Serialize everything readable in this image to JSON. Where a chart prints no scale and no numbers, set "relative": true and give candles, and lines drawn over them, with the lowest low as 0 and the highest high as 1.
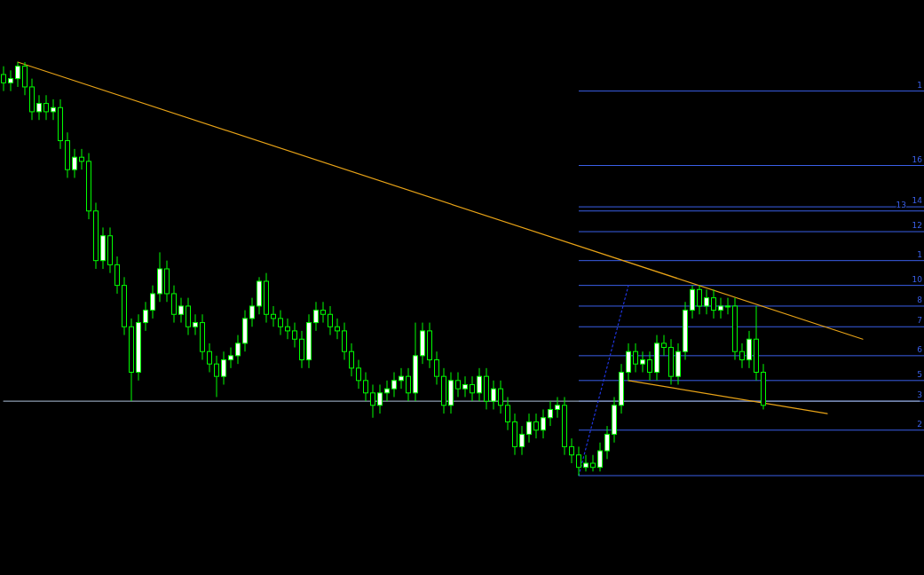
{
  "chart_data": {
    "type": "candlestick",
    "relative": true,
    "categories": [
      null,
      null,
      null,
      null,
      null,
      null,
      null,
      null,
      null,
      null,
      null,
      null,
      null,
      null,
      null,
      null,
      null,
      null,
      null,
      null,
      null,
      null,
      null,
      null,
      null,
      null,
      null,
      null,
      null,
      null,
      null,
      null,
      null,
      null,
      null,
      null,
      null,
      null,
      null,
      null,
      null,
      null,
      null,
      null,
      null,
      null,
      null,
      null,
      null,
      null,
      null,
      null,
      null,
      null,
      null,
      null,
      null,
      null,
      null,
      null,
      null,
      null,
      null,
      null,
      null,
      null,
      null,
      null,
      null,
      null,
      null,
      null,
      null,
      null,
      null,
      null,
      null,
      null,
      null,
      null,
      null,
      null,
      null,
      null,
      null,
      null,
      null,
      null,
      null,
      null,
      null,
      null,
      null,
      null,
      null,
      null,
      null,
      null,
      null,
      null,
      null,
      null,
      null,
      null,
      null,
      null,
      null,
      null,
      null,
      null,
      null,
      null,
      null,
      null,
      null,
      null,
      null,
      null,
      null,
      null,
      null,
      null,
      null,
      null,
      null,
      null,
      null,
      null,
      null,
      null
    ],
    "series": [
      {
        "type": "candlestick",
        "color": "#00ff00",
        "ohlc": [
          [
            0.97,
            0.99,
            0.93,
            0.95
          ],
          [
            0.95,
            0.98,
            0.93,
            0.96
          ],
          [
            0.96,
            1.0,
            0.94,
            0.99
          ],
          [
            0.99,
            1.0,
            0.92,
            0.94
          ],
          [
            0.94,
            0.96,
            0.86,
            0.88
          ],
          [
            0.88,
            0.92,
            0.86,
            0.9
          ],
          [
            0.9,
            0.92,
            0.86,
            0.88
          ],
          [
            0.88,
            0.91,
            0.86,
            0.89
          ],
          [
            0.89,
            0.91,
            0.79,
            0.81
          ],
          [
            0.81,
            0.83,
            0.72,
            0.74
          ],
          [
            0.74,
            0.79,
            0.72,
            0.77
          ],
          [
            0.77,
            0.79,
            0.74,
            0.76
          ],
          [
            0.76,
            0.78,
            0.62,
            0.64
          ],
          [
            0.64,
            0.66,
            0.5,
            0.52
          ],
          [
            0.52,
            0.6,
            0.5,
            0.58
          ],
          [
            0.58,
            0.6,
            0.49,
            0.51
          ],
          [
            0.51,
            0.53,
            0.44,
            0.46
          ],
          [
            0.46,
            0.48,
            0.34,
            0.36
          ],
          [
            0.36,
            0.38,
            0.18,
            0.25
          ],
          [
            0.25,
            0.39,
            0.23,
            0.37
          ],
          [
            0.37,
            0.42,
            0.35,
            0.4
          ],
          [
            0.4,
            0.46,
            0.38,
            0.44
          ],
          [
            0.44,
            0.54,
            0.42,
            0.5
          ],
          [
            0.5,
            0.52,
            0.42,
            0.44
          ],
          [
            0.44,
            0.46,
            0.37,
            0.39
          ],
          [
            0.39,
            0.43,
            0.37,
            0.41
          ],
          [
            0.41,
            0.43,
            0.34,
            0.36
          ],
          [
            0.36,
            0.39,
            0.34,
            0.37
          ],
          [
            0.37,
            0.39,
            0.28,
            0.3
          ],
          [
            0.3,
            0.32,
            0.25,
            0.27
          ],
          [
            0.27,
            0.29,
            0.19,
            0.24
          ],
          [
            0.24,
            0.3,
            0.22,
            0.28
          ],
          [
            0.28,
            0.31,
            0.26,
            0.29
          ],
          [
            0.29,
            0.34,
            0.27,
            0.32
          ],
          [
            0.32,
            0.4,
            0.3,
            0.38
          ],
          [
            0.38,
            0.43,
            0.36,
            0.41
          ],
          [
            0.41,
            0.48,
            0.39,
            0.47
          ],
          [
            0.47,
            0.49,
            0.37,
            0.39
          ],
          [
            0.39,
            0.41,
            0.36,
            0.38
          ],
          [
            0.38,
            0.4,
            0.34,
            0.36
          ],
          [
            0.36,
            0.38,
            0.33,
            0.35
          ],
          [
            0.35,
            0.37,
            0.31,
            0.33
          ],
          [
            0.33,
            0.35,
            0.26,
            0.28
          ],
          [
            0.28,
            0.39,
            0.26,
            0.37
          ],
          [
            0.37,
            0.42,
            0.35,
            0.4
          ],
          [
            0.4,
            0.42,
            0.37,
            0.39
          ],
          [
            0.39,
            0.41,
            0.34,
            0.36
          ],
          [
            0.36,
            0.38,
            0.33,
            0.35
          ],
          [
            0.35,
            0.37,
            0.28,
            0.3
          ],
          [
            0.3,
            0.32,
            0.24,
            0.26
          ],
          [
            0.26,
            0.28,
            0.21,
            0.23
          ],
          [
            0.23,
            0.25,
            0.18,
            0.2
          ],
          [
            0.2,
            0.22,
            0.14,
            0.17
          ],
          [
            0.17,
            0.22,
            0.15,
            0.2
          ],
          [
            0.2,
            0.23,
            0.18,
            0.21
          ],
          [
            0.21,
            0.25,
            0.19,
            0.23
          ],
          [
            0.23,
            0.26,
            0.21,
            0.24
          ],
          [
            0.24,
            0.26,
            0.18,
            0.2
          ],
          [
            0.2,
            0.37,
            0.18,
            0.29
          ],
          [
            0.29,
            0.37,
            0.27,
            0.35
          ],
          [
            0.35,
            0.37,
            0.26,
            0.28
          ],
          [
            0.28,
            0.3,
            0.22,
            0.24
          ],
          [
            0.24,
            0.26,
            0.15,
            0.17
          ],
          [
            0.17,
            0.25,
            0.15,
            0.23
          ],
          [
            0.23,
            0.25,
            0.19,
            0.21
          ],
          [
            0.21,
            0.24,
            0.19,
            0.22
          ],
          [
            0.22,
            0.24,
            0.18,
            0.2
          ],
          [
            0.2,
            0.26,
            0.18,
            0.24
          ],
          [
            0.24,
            0.26,
            0.16,
            0.18
          ],
          [
            0.18,
            0.23,
            0.16,
            0.21
          ],
          [
            0.21,
            0.23,
            0.15,
            0.17
          ],
          [
            0.17,
            0.19,
            0.11,
            0.13
          ],
          [
            0.13,
            0.15,
            0.05,
            0.07
          ],
          [
            0.07,
            0.12,
            0.05,
            0.1
          ],
          [
            0.1,
            0.15,
            0.08,
            0.13
          ],
          [
            0.13,
            0.15,
            0.09,
            0.11
          ],
          [
            0.11,
            0.16,
            0.09,
            0.14
          ],
          [
            0.14,
            0.18,
            0.12,
            0.16
          ],
          [
            0.16,
            0.19,
            0.14,
            0.17
          ],
          [
            0.17,
            0.19,
            0.05,
            0.07
          ],
          [
            0.07,
            0.09,
            0.03,
            0.05
          ],
          [
            0.05,
            0.07,
            0.0,
            0.02
          ],
          [
            0.02,
            0.05,
            0.01,
            0.03
          ],
          [
            0.03,
            0.05,
            0.01,
            0.02
          ],
          [
            0.02,
            0.08,
            0.01,
            0.06
          ],
          [
            0.06,
            0.12,
            0.04,
            0.1
          ],
          [
            0.1,
            0.19,
            0.08,
            0.17
          ],
          [
            0.17,
            0.27,
            0.15,
            0.25
          ],
          [
            0.25,
            0.32,
            0.23,
            0.3
          ],
          [
            0.3,
            0.32,
            0.25,
            0.27
          ],
          [
            0.27,
            0.3,
            0.25,
            0.28
          ],
          [
            0.28,
            0.3,
            0.23,
            0.25
          ],
          [
            0.25,
            0.34,
            0.23,
            0.32
          ],
          [
            0.32,
            0.34,
            0.29,
            0.31
          ],
          [
            0.31,
            0.33,
            0.22,
            0.24
          ],
          [
            0.24,
            0.32,
            0.22,
            0.3
          ],
          [
            0.3,
            0.42,
            0.28,
            0.4
          ],
          [
            0.4,
            0.46,
            0.38,
            0.45
          ],
          [
            0.45,
            0.46,
            0.39,
            0.41
          ],
          [
            0.41,
            0.45,
            0.39,
            0.43
          ],
          [
            0.43,
            0.45,
            0.38,
            0.4
          ],
          [
            0.4,
            0.43,
            0.38,
            0.41
          ],
          [
            0.41,
            0.43,
            0.39,
            0.41
          ],
          [
            0.41,
            0.43,
            0.28,
            0.3
          ],
          [
            0.3,
            0.32,
            0.26,
            0.28
          ],
          [
            0.28,
            0.35,
            0.26,
            0.33
          ],
          [
            0.33,
            0.41,
            0.23,
            0.25
          ],
          [
            0.25,
            0.27,
            0.16,
            0.17
          ],
          null,
          null,
          null,
          null,
          null,
          null,
          null,
          null,
          null,
          null,
          null,
          null,
          null,
          null,
          null,
          null,
          null,
          null,
          null,
          null,
          null,
          null
        ]
      },
      {
        "type": "line",
        "color": "#8c9bb0",
        "line_style": "solid",
        "values": [
          0.18,
          null,
          null,
          null,
          null,
          null,
          null,
          null,
          null,
          null,
          null,
          null,
          null,
          null,
          null,
          null,
          null,
          null,
          null,
          null,
          null,
          null,
          null,
          null,
          null,
          null,
          null,
          null,
          null,
          null,
          null,
          null,
          null,
          null,
          null,
          null,
          null,
          null,
          null,
          null,
          null,
          null,
          null,
          null,
          null,
          null,
          null,
          null,
          null,
          null,
          null,
          null,
          null,
          null,
          null,
          null,
          null,
          null,
          null,
          null,
          null,
          null,
          null,
          null,
          null,
          null,
          null,
          null,
          null,
          null,
          null,
          null,
          null,
          null,
          null,
          null,
          null,
          null,
          null,
          null,
          null,
          null,
          null,
          null,
          null,
          null,
          null,
          null,
          null,
          null,
          null,
          null,
          null,
          null,
          null,
          null,
          null,
          null,
          null,
          null,
          null,
          null,
          null,
          null,
          null,
          null,
          null,
          null,
          null,
          null,
          null,
          null,
          null,
          null,
          null,
          null,
          null,
          null,
          null,
          null,
          null,
          null,
          null,
          null,
          null,
          null,
          null,
          null,
          null,
          0.18
        ]
      },
      {
        "type": "line",
        "color": "#e8a317",
        "line_style": "solid",
        "values": [
          null,
          null,
          1.0,
          null,
          null,
          null,
          null,
          null,
          null,
          null,
          null,
          null,
          null,
          null,
          null,
          null,
          null,
          null,
          null,
          null,
          null,
          null,
          null,
          null,
          null,
          null,
          null,
          null,
          null,
          null,
          null,
          null,
          null,
          null,
          null,
          null,
          null,
          null,
          null,
          null,
          null,
          null,
          null,
          null,
          null,
          null,
          null,
          null,
          null,
          null,
          null,
          null,
          null,
          null,
          null,
          null,
          null,
          null,
          null,
          null,
          null,
          null,
          null,
          null,
          null,
          null,
          null,
          null,
          null,
          null,
          null,
          null,
          null,
          null,
          null,
          null,
          null,
          null,
          null,
          null,
          null,
          null,
          null,
          null,
          null,
          null,
          null,
          null,
          null,
          null,
          null,
          null,
          null,
          null,
          null,
          null,
          null,
          null,
          null,
          null,
          null,
          null,
          null,
          null,
          null,
          null,
          null,
          null,
          null,
          null,
          null,
          null,
          null,
          null,
          null,
          null,
          null,
          null,
          null,
          null,
          null,
          0.33,
          null,
          null,
          null,
          null,
          null,
          null,
          null,
          null
        ]
      },
      {
        "type": "line",
        "color": "#e8a317",
        "line_style": "solid",
        "values": [
          null,
          null,
          null,
          null,
          null,
          null,
          null,
          null,
          null,
          null,
          null,
          null,
          null,
          null,
          null,
          null,
          null,
          null,
          null,
          null,
          null,
          null,
          null,
          null,
          null,
          null,
          null,
          null,
          null,
          null,
          null,
          null,
          null,
          null,
          null,
          null,
          null,
          null,
          null,
          null,
          null,
          null,
          null,
          null,
          null,
          null,
          null,
          null,
          null,
          null,
          null,
          null,
          null,
          null,
          null,
          null,
          null,
          null,
          null,
          null,
          null,
          null,
          null,
          null,
          null,
          null,
          null,
          null,
          null,
          null,
          null,
          null,
          null,
          null,
          null,
          null,
          null,
          null,
          null,
          null,
          null,
          null,
          null,
          null,
          null,
          null,
          null,
          null,
          0.23,
          null,
          null,
          null,
          null,
          null,
          null,
          null,
          null,
          null,
          null,
          null,
          null,
          null,
          null,
          null,
          null,
          null,
          null,
          null,
          null,
          null,
          null,
          null,
          null,
          null,
          null,
          null,
          0.15,
          null,
          null,
          null,
          null,
          null,
          null,
          null,
          null,
          null,
          null,
          null,
          null,
          null
        ]
      },
      {
        "type": "line",
        "color": "#1f35e0",
        "line_style": "dotted",
        "values": [
          null,
          null,
          null,
          null,
          null,
          null,
          null,
          null,
          null,
          null,
          null,
          null,
          null,
          null,
          null,
          null,
          null,
          null,
          null,
          null,
          null,
          null,
          null,
          null,
          null,
          null,
          null,
          null,
          null,
          null,
          null,
          null,
          null,
          null,
          null,
          null,
          null,
          null,
          null,
          null,
          null,
          null,
          null,
          null,
          null,
          null,
          null,
          null,
          null,
          null,
          null,
          null,
          null,
          null,
          null,
          null,
          null,
          null,
          null,
          null,
          null,
          null,
          null,
          null,
          null,
          null,
          null,
          null,
          null,
          null,
          null,
          null,
          null,
          null,
          null,
          null,
          null,
          null,
          null,
          null,
          null,
          0.0,
          null,
          null,
          null,
          null,
          null,
          null,
          0.46,
          null,
          null,
          null,
          null,
          null,
          null,
          null,
          null,
          null,
          null,
          null,
          null,
          null,
          null,
          null,
          null,
          null,
          null,
          null,
          null,
          null,
          null,
          null,
          null,
          null,
          null,
          null,
          null,
          null,
          null,
          null,
          null,
          null,
          null,
          null,
          null,
          null,
          null,
          null,
          null,
          null
        ]
      }
    ],
    "ref_lines": [
      {
        "axis": "y",
        "value": 0.0,
        "color": "#3a5fe8"
      },
      {
        "axis": "y",
        "value": 0.93,
        "color": "#3a5fe8"
      },
      {
        "axis": "y",
        "value": 0.75,
        "color": "#3a5fe8"
      },
      {
        "axis": "y",
        "value": 0.65,
        "color": "#3a5fe8"
      },
      {
        "axis": "y",
        "value": 0.64,
        "color": "#3a5fe8"
      },
      {
        "axis": "y",
        "value": 0.59,
        "color": "#3a5fe8"
      },
      {
        "axis": "y",
        "value": 0.52,
        "color": "#3a5fe8"
      },
      {
        "axis": "y",
        "value": 0.46,
        "color": "#3a5fe8"
      },
      {
        "axis": "y",
        "value": 0.41,
        "color": "#3a5fe8"
      },
      {
        "axis": "y",
        "value": 0.36,
        "color": "#3a5fe8"
      },
      {
        "axis": "y",
        "value": 0.29,
        "color": "#3a5fe8"
      },
      {
        "axis": "y",
        "value": 0.23,
        "color": "#3a5fe8"
      },
      {
        "axis": "y",
        "value": 0.18,
        "color": "#3a5fe8"
      },
      {
        "axis": "y",
        "value": 0.11,
        "color": "#3a5fe8"
      }
    ],
    "annotations": [
      {
        "text": "1",
        "y": 0.93
      },
      {
        "text": "16",
        "y": 0.75
      },
      {
        "text": "14",
        "y": 0.65
      },
      {
        "text": "13",
        "y": 0.64
      },
      {
        "text": "12",
        "y": 0.59
      },
      {
        "text": "1",
        "y": 0.52
      },
      {
        "text": "10",
        "y": 0.46
      },
      {
        "text": "8",
        "y": 0.41
      },
      {
        "text": "7",
        "y": 0.36
      },
      {
        "text": "6",
        "y": 0.29
      },
      {
        "text": "5",
        "y": 0.23
      },
      {
        "text": "3",
        "y": 0.18
      },
      {
        "text": "2",
        "y": 0.11
      }
    ]
  }
}
